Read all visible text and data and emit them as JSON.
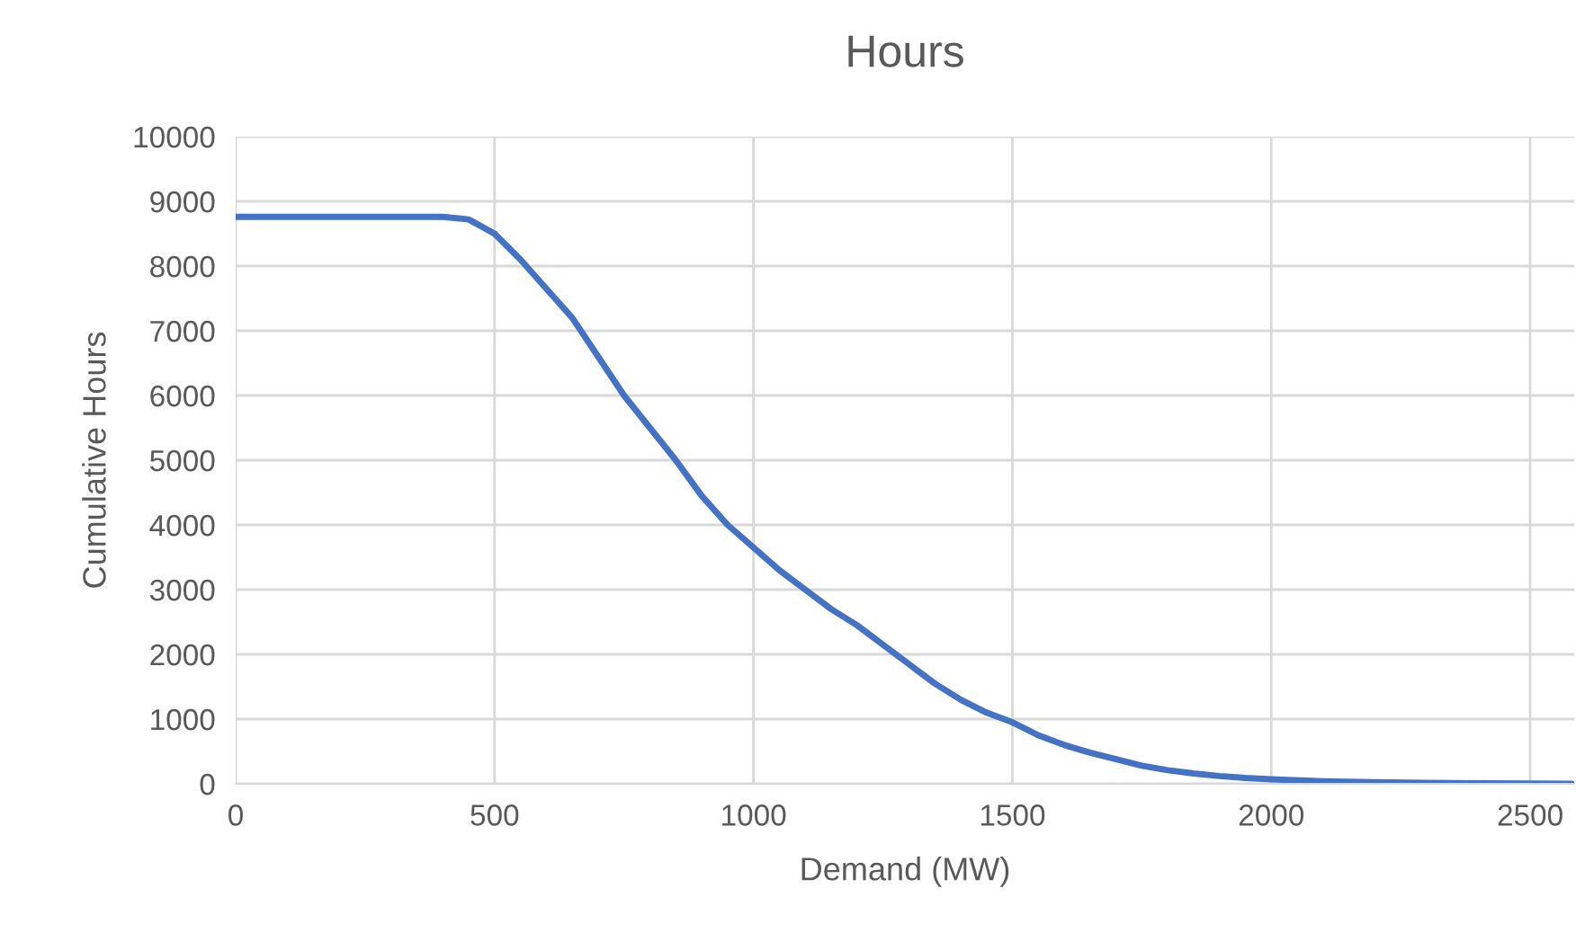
{
  "chart_data": {
    "type": "line",
    "title": "Hours",
    "xlabel": "Demand (MW)",
    "ylabel": "Cumulative Hours",
    "series": [
      {
        "color": "#4472c4",
        "x": [
          0,
          400,
          450,
          500,
          550,
          600,
          650,
          700,
          750,
          800,
          850,
          900,
          950,
          1000,
          1050,
          1100,
          1150,
          1200,
          1250,
          1300,
          1350,
          1400,
          1450,
          1500,
          1550,
          1600,
          1650,
          1700,
          1750,
          1800,
          1850,
          1900,
          1950,
          2000,
          2100,
          2200,
          2300,
          2400,
          2500,
          2580
        ],
        "values": [
          8760,
          8760,
          8720,
          8500,
          8100,
          7650,
          7200,
          6600,
          6000,
          5500,
          5000,
          4450,
          4000,
          3650,
          3300,
          3000,
          2700,
          2450,
          2150,
          1850,
          1550,
          1300,
          1100,
          950,
          750,
          600,
          480,
          380,
          280,
          210,
          160,
          120,
          90,
          70,
          40,
          25,
          15,
          8,
          3,
          0
        ]
      }
    ],
    "xlim": [
      0,
      2585
    ],
    "xticks": [
      0,
      500,
      1000,
      1500,
      2000,
      2500
    ],
    "ylim": [
      0,
      10000
    ],
    "yticks": [
      0,
      1000,
      2000,
      3000,
      4000,
      5000,
      6000,
      7000,
      8000,
      9000,
      10000
    ],
    "grid": true,
    "marker": "none",
    "line_style": "solid"
  }
}
